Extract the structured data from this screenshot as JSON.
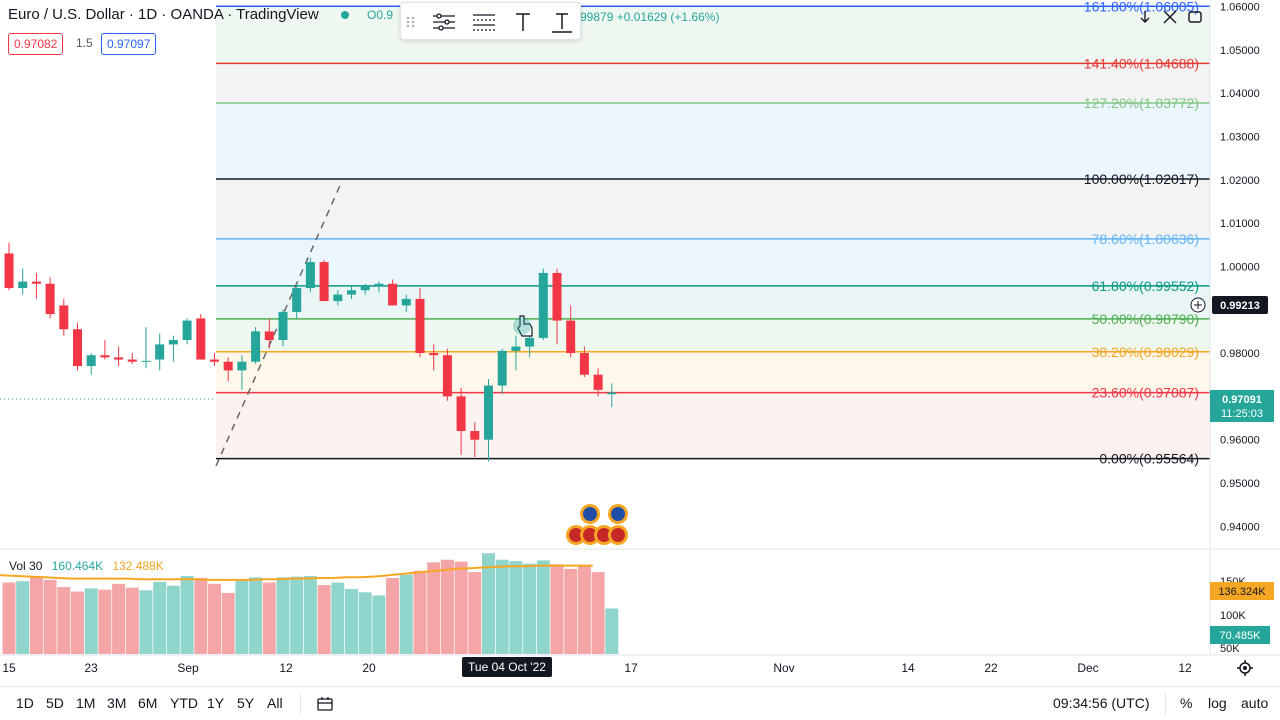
{
  "header": {
    "title": "Euro / U.S. Dollar · 1D · OANDA · TradingView",
    "ohlc_fragment": "O0.9",
    "change_fragment": "99879 +0.01629 (+1.66%)",
    "bid": "0.97082",
    "spread": "1.5",
    "ask": "0.97097"
  },
  "drawing_toolbar": {
    "tools": [
      "drag-handle",
      "fib-settings-icon",
      "fib-levels-icon",
      "text-icon",
      "text-anchor-icon"
    ]
  },
  "fib_levels": [
    {
      "label": "161.80%(1.06005)",
      "price": 1.06005,
      "color": "#2962ff"
    },
    {
      "label": "141.40%(1.04688)",
      "price": 1.04688,
      "color": "#e53935"
    },
    {
      "label": "127.20%(1.03772)",
      "price": 1.03772,
      "color": "#81c784"
    },
    {
      "label": "100.00%(1.02017)",
      "price": 1.02017,
      "color": "#131722"
    },
    {
      "label": "78.60%(1.00636)",
      "price": 1.00636,
      "color": "#64b5f6"
    },
    {
      "label": "61.80%(0.99552)",
      "price": 0.99552,
      "color": "#089981"
    },
    {
      "label": "50.00%(0.98790)",
      "price": 0.9879,
      "color": "#4caf50"
    },
    {
      "label": "38.20%(0.98029)",
      "price": 0.98029,
      "color": "#f5a623"
    },
    {
      "label": "23.60%(0.97087)",
      "price": 0.97087,
      "color": "#f23645"
    },
    {
      "label": "0.00%(0.95564)",
      "price": 0.95564,
      "color": "#131722"
    }
  ],
  "price_axis": {
    "ticks": [
      "1.06000",
      "1.05000",
      "1.04000",
      "1.03000",
      "1.02000",
      "1.01000",
      "1.00000",
      "0.99000",
      "0.98000",
      "0.97000",
      "0.96000",
      "0.95000",
      "0.94000"
    ],
    "crosshair_price": "0.99213",
    "last_price": "0.97091",
    "countdown": "11:25:03"
  },
  "volume": {
    "label": "Vol 30",
    "value1": "160.464K",
    "value2": "132.488K",
    "axis_ticks": [
      "150K",
      "100K",
      "50K"
    ],
    "ma_badge": "136.324K",
    "vol_badge": "70.485K"
  },
  "time_axis": {
    "ticks": [
      "15",
      "23",
      "Sep",
      "12",
      "20",
      "17",
      "Nov",
      "14",
      "22",
      "Dec",
      "12"
    ],
    "crosshair_label": "Tue 04 Oct '22"
  },
  "bottom_bar": {
    "ranges": [
      "1D",
      "5D",
      "1M",
      "3M",
      "6M",
      "YTD",
      "1Y",
      "5Y",
      "All"
    ],
    "clock": "09:34:56 (UTC)",
    "percent": "%",
    "log": "log",
    "auto": "auto"
  },
  "chart_data": {
    "type": "candlestick",
    "symbol": "EUR/USD",
    "interval": "1D",
    "ylim": [
      0.935,
      1.0615
    ],
    "candles": [
      {
        "o": 1.003,
        "h": 1.0055,
        "l": 0.9945,
        "c": 0.995
      },
      {
        "o": 0.995,
        "h": 0.9995,
        "l": 0.9935,
        "c": 0.9965
      },
      {
        "o": 0.9965,
        "h": 0.9985,
        "l": 0.9925,
        "c": 0.996
      },
      {
        "o": 0.996,
        "h": 0.9975,
        "l": 0.988,
        "c": 0.989
      },
      {
        "o": 0.991,
        "h": 0.9925,
        "l": 0.984,
        "c": 0.9855
      },
      {
        "o": 0.9855,
        "h": 0.987,
        "l": 0.976,
        "c": 0.977
      },
      {
        "o": 0.977,
        "h": 0.98,
        "l": 0.975,
        "c": 0.9795
      },
      {
        "o": 0.9795,
        "h": 0.983,
        "l": 0.9785,
        "c": 0.979
      },
      {
        "o": 0.979,
        "h": 0.9815,
        "l": 0.977,
        "c": 0.9785
      },
      {
        "o": 0.9785,
        "h": 0.98,
        "l": 0.9775,
        "c": 0.978
      },
      {
        "o": 0.978,
        "h": 0.986,
        "l": 0.9765,
        "c": 0.9782
      },
      {
        "o": 0.9785,
        "h": 0.9845,
        "l": 0.976,
        "c": 0.982
      },
      {
        "o": 0.982,
        "h": 0.984,
        "l": 0.978,
        "c": 0.983
      },
      {
        "o": 0.983,
        "h": 0.988,
        "l": 0.982,
        "c": 0.9875
      },
      {
        "o": 0.988,
        "h": 0.989,
        "l": 0.9785,
        "c": 0.9785
      },
      {
        "o": 0.9785,
        "h": 0.98,
        "l": 0.977,
        "c": 0.978
      },
      {
        "o": 0.978,
        "h": 0.979,
        "l": 0.9735,
        "c": 0.976
      },
      {
        "o": 0.976,
        "h": 0.9795,
        "l": 0.9715,
        "c": 0.978
      },
      {
        "o": 0.978,
        "h": 0.986,
        "l": 0.9775,
        "c": 0.985
      },
      {
        "o": 0.985,
        "h": 0.988,
        "l": 0.981,
        "c": 0.983
      },
      {
        "o": 0.983,
        "h": 0.99,
        "l": 0.9815,
        "c": 0.9895
      },
      {
        "o": 0.9895,
        "h": 0.996,
        "l": 0.988,
        "c": 0.995
      },
      {
        "o": 0.995,
        "h": 1.002,
        "l": 0.994,
        "c": 1.001
      },
      {
        "o": 1.001,
        "h": 1.0015,
        "l": 0.992,
        "c": 0.992
      },
      {
        "o": 0.992,
        "h": 0.9945,
        "l": 0.991,
        "c": 0.9935
      },
      {
        "o": 0.9935,
        "h": 0.9955,
        "l": 0.9925,
        "c": 0.9945
      },
      {
        "o": 0.9945,
        "h": 0.996,
        "l": 0.9935,
        "c": 0.9955
      },
      {
        "o": 0.9955,
        "h": 0.9965,
        "l": 0.994,
        "c": 0.996
      },
      {
        "o": 0.996,
        "h": 0.997,
        "l": 0.991,
        "c": 0.991
      },
      {
        "o": 0.991,
        "h": 0.9935,
        "l": 0.9895,
        "c": 0.9925
      },
      {
        "o": 0.9925,
        "h": 0.995,
        "l": 0.979,
        "c": 0.98
      },
      {
        "o": 0.98,
        "h": 0.982,
        "l": 0.976,
        "c": 0.9795
      },
      {
        "o": 0.9795,
        "h": 0.981,
        "l": 0.969,
        "c": 0.97
      },
      {
        "o": 0.97,
        "h": 0.972,
        "l": 0.9565,
        "c": 0.962
      },
      {
        "o": 0.962,
        "h": 0.964,
        "l": 0.956,
        "c": 0.96
      },
      {
        "o": 0.96,
        "h": 0.974,
        "l": 0.955,
        "c": 0.9725
      },
      {
        "o": 0.9725,
        "h": 0.981,
        "l": 0.9705,
        "c": 0.9805
      },
      {
        "o": 0.9805,
        "h": 0.984,
        "l": 0.976,
        "c": 0.9815
      },
      {
        "o": 0.9815,
        "h": 0.9845,
        "l": 0.979,
        "c": 0.9835
      },
      {
        "o": 0.9835,
        "h": 0.9995,
        "l": 0.983,
        "c": 0.9985
      },
      {
        "o": 0.9985,
        "h": 0.9995,
        "l": 0.982,
        "c": 0.9875
      },
      {
        "o": 0.9875,
        "h": 0.991,
        "l": 0.979,
        "c": 0.98
      },
      {
        "o": 0.98,
        "h": 0.9815,
        "l": 0.9745,
        "c": 0.975
      },
      {
        "o": 0.975,
        "h": 0.9765,
        "l": 0.97,
        "c": 0.9715
      },
      {
        "o": 0.9705,
        "h": 0.973,
        "l": 0.9675,
        "c": 0.9709
      }
    ],
    "volume": [
      110,
      112,
      118,
      114,
      103,
      96,
      101,
      99,
      108,
      102,
      98,
      111,
      105,
      120,
      117,
      108,
      94,
      113,
      118,
      110,
      118,
      119,
      120,
      106,
      110,
      100,
      95,
      90,
      117,
      122,
      128,
      141,
      145,
      142,
      126,
      155,
      145,
      143,
      139,
      144,
      138,
      131,
      135,
      126,
      70
    ],
    "volume_ma": [
      122,
      121,
      120,
      119,
      118,
      117,
      116,
      116,
      116,
      116,
      116,
      115,
      115,
      115,
      115,
      115,
      114,
      114,
      114,
      114,
      115,
      115,
      116,
      116,
      117,
      117,
      118,
      118,
      119,
      121,
      123,
      125,
      127,
      129,
      131,
      132,
      133,
      134,
      135,
      135,
      136,
      136,
      136,
      136,
      136
    ]
  }
}
